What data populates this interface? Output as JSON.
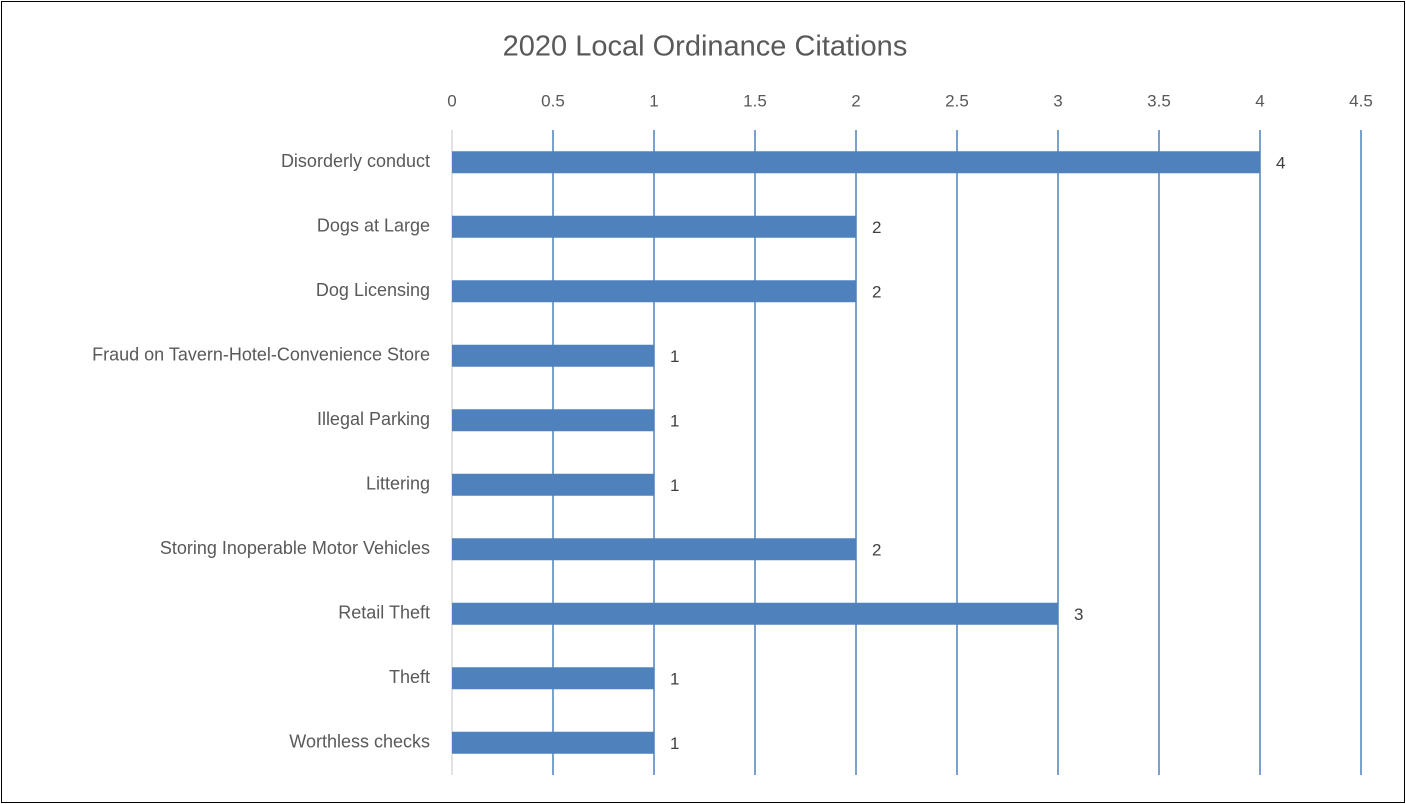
{
  "chart_data": {
    "type": "bar",
    "orientation": "horizontal",
    "title": "2020 Local Ordinance Citations",
    "categories": [
      "Disorderly conduct",
      "Dogs at Large",
      "Dog Licensing",
      "Fraud on Tavern-Hotel-Convenience Store",
      "Illegal Parking",
      "Littering",
      "Storing Inoperable Motor Vehicles",
      "Retail Theft",
      "Theft",
      "Worthless checks"
    ],
    "values": [
      4,
      2,
      2,
      1,
      1,
      1,
      2,
      3,
      1,
      1
    ],
    "color": "#4f81bd",
    "xlim": [
      0,
      4.5
    ],
    "xticks": [
      0,
      0.5,
      1,
      1.5,
      2,
      2.5,
      3,
      3.5,
      4,
      4.5
    ],
    "grid": true,
    "grid_color": "#4f81bd"
  }
}
